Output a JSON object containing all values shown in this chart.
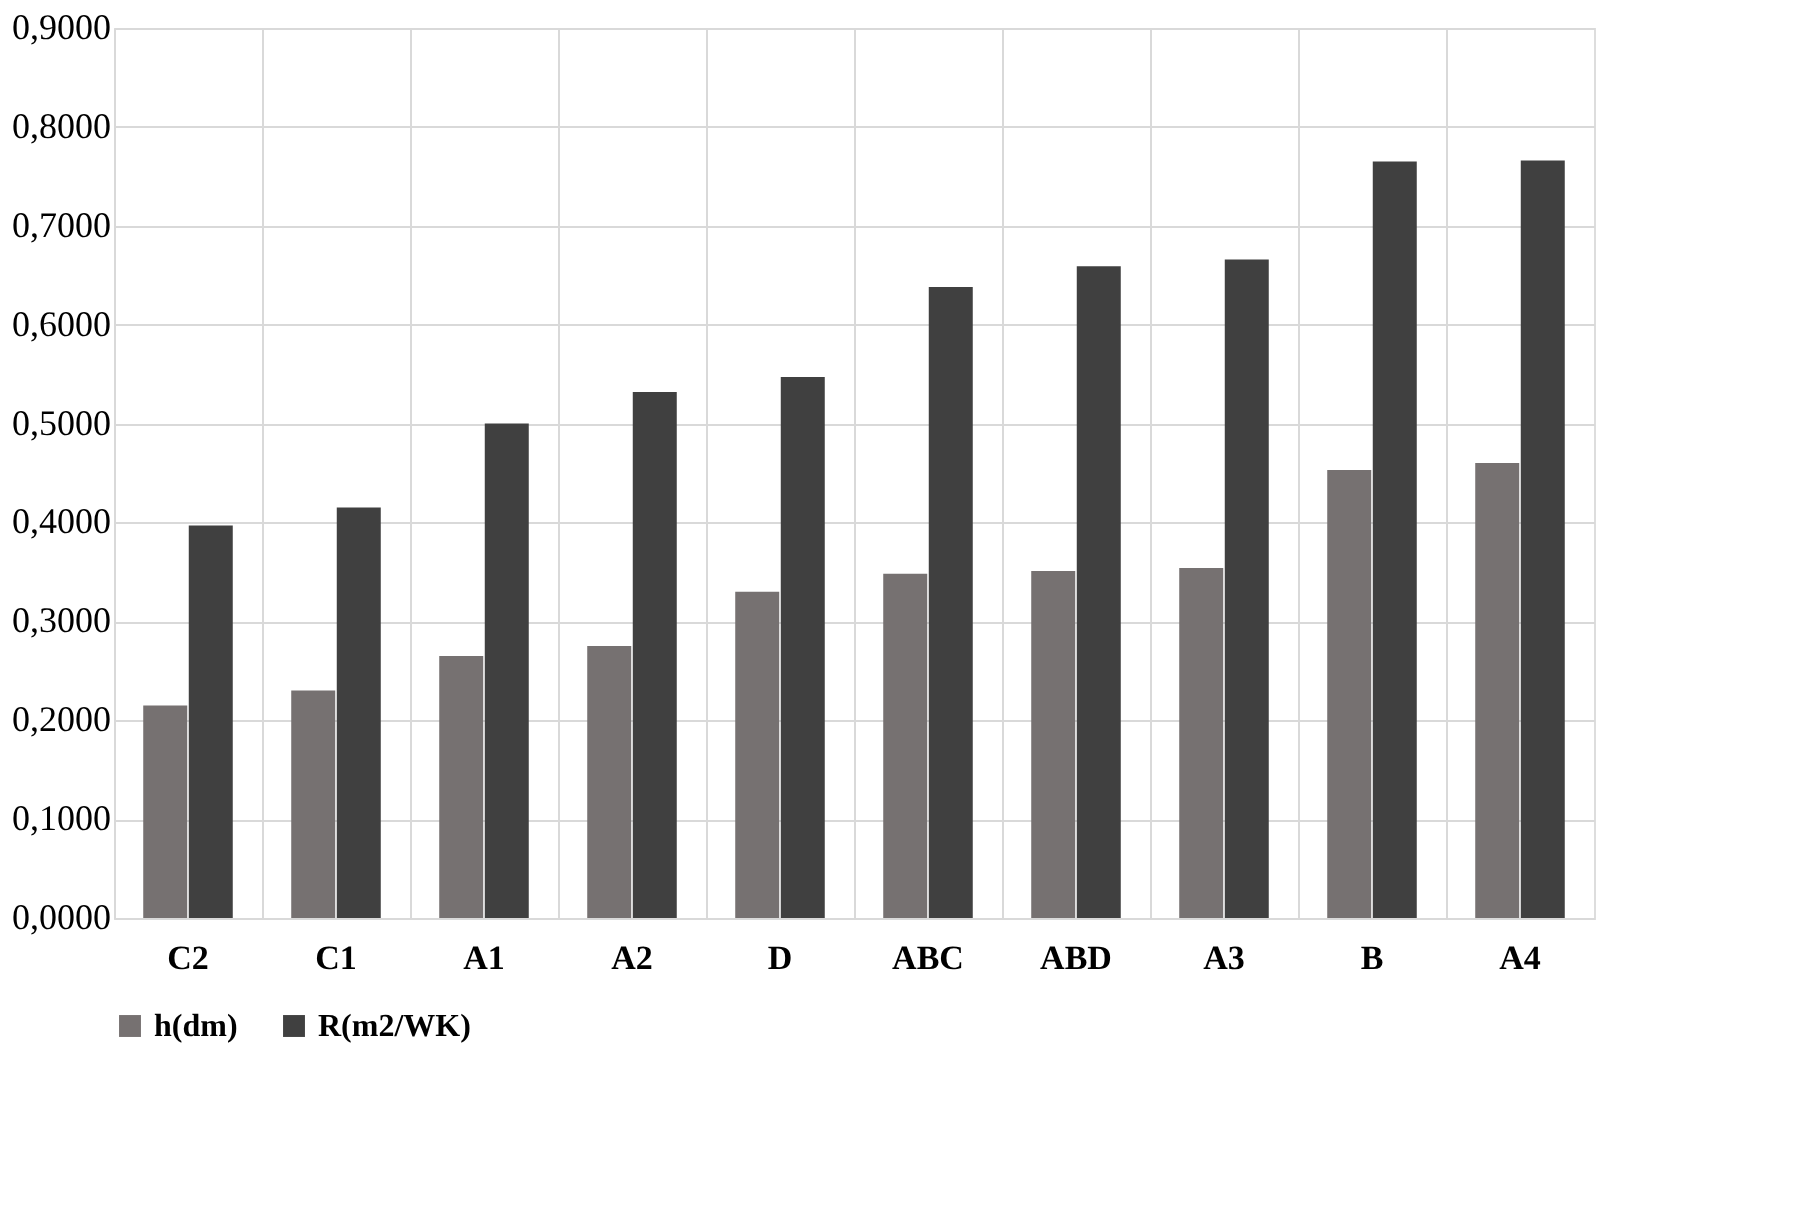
{
  "chart_data": {
    "type": "bar",
    "categories": [
      "C2",
      "C1",
      "A1",
      "A2",
      "D",
      "ABC",
      "ABD",
      "A3",
      "B",
      "A4"
    ],
    "series": [
      {
        "name": "h(dm)",
        "color": "#767171",
        "values": [
          0.215,
          0.23,
          0.265,
          0.275,
          0.33,
          0.348,
          0.351,
          0.354,
          0.453,
          0.46
        ]
      },
      {
        "name": "R(m2/WK)",
        "color": "#404040",
        "values": [
          0.397,
          0.415,
          0.5,
          0.532,
          0.547,
          0.638,
          0.659,
          0.666,
          0.765,
          0.766
        ]
      }
    ],
    "ylim": [
      0,
      0.9
    ],
    "yticks": [
      {
        "value": 0,
        "label": "0,0000"
      },
      {
        "value": 0.1,
        "label": "0,1000"
      },
      {
        "value": 0.2,
        "label": "0,2000"
      },
      {
        "value": 0.3,
        "label": "0,3000"
      },
      {
        "value": 0.4,
        "label": "0,4000"
      },
      {
        "value": 0.5,
        "label": "0,5000"
      },
      {
        "value": 0.6,
        "label": "0,6000"
      },
      {
        "value": 0.7,
        "label": "0,7000"
      },
      {
        "value": 0.8,
        "label": "0,8000"
      },
      {
        "value": 0.9,
        "label": "0,9000"
      }
    ],
    "grid": true,
    "legend": "bottom"
  }
}
